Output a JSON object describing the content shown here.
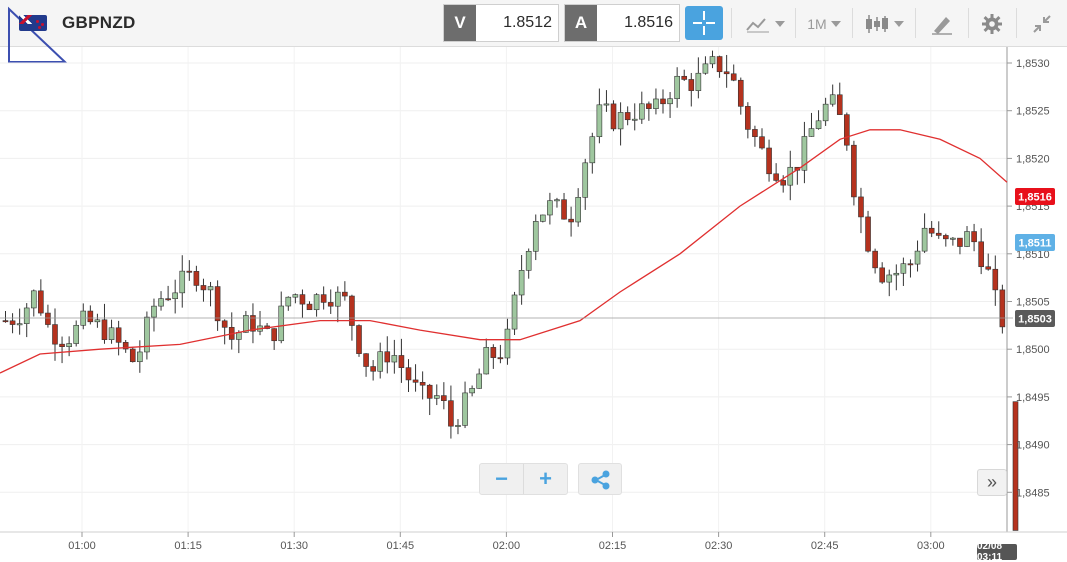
{
  "toolbar": {
    "symbol": "GBPNZD",
    "bid_label": "V",
    "bid_value": "1.8512",
    "ask_label": "A",
    "ask_value": "1.8516",
    "timeframe": "1M",
    "icons": [
      "crosshair-icon",
      "chart-type-icon",
      "candlestick-icon",
      "drawing-tool-icon",
      "gear-icon",
      "collapse-icon"
    ],
    "accent_color": "#4aa3df"
  },
  "chart_data": {
    "type": "candlestick",
    "y_ticks": [
      "1,8530",
      "1,8525",
      "1,8520",
      "1,8515",
      "1,8510",
      "1,8505",
      "1,8500",
      "1,8495",
      "1,8490",
      "1,8485"
    ],
    "x_ticks": [
      "01:00",
      "01:15",
      "01:30",
      "01:45",
      "02:00",
      "02:15",
      "02:30",
      "02:45",
      "03:00"
    ],
    "price_tags": {
      "red": "1,8516",
      "blue": "1,8511",
      "current": "1,8503"
    },
    "date_tag": "02/08 03:11",
    "up_color": "#9fc79f",
    "down_color": "#b5321e",
    "ma_color": "#e03030"
  },
  "controls": {
    "zoom_out": "−",
    "zoom_in": "+",
    "forward": "»"
  }
}
